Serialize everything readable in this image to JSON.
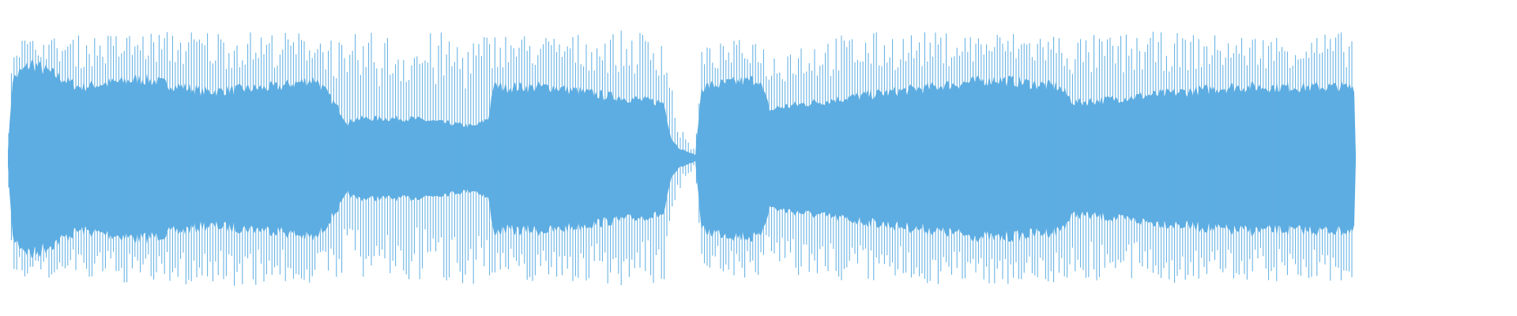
{
  "chart_data": {
    "type": "area",
    "kind": "audio-waveform",
    "title": "",
    "xlabel": "",
    "ylabel": "",
    "axes_visible": false,
    "grid": false,
    "legend": "none",
    "ylim": [
      -1,
      1
    ],
    "series": [
      {
        "color": "#5dade2"
      }
    ]
  },
  "colors": {
    "waveform": "#5dade2",
    "background": "#ffffff"
  }
}
